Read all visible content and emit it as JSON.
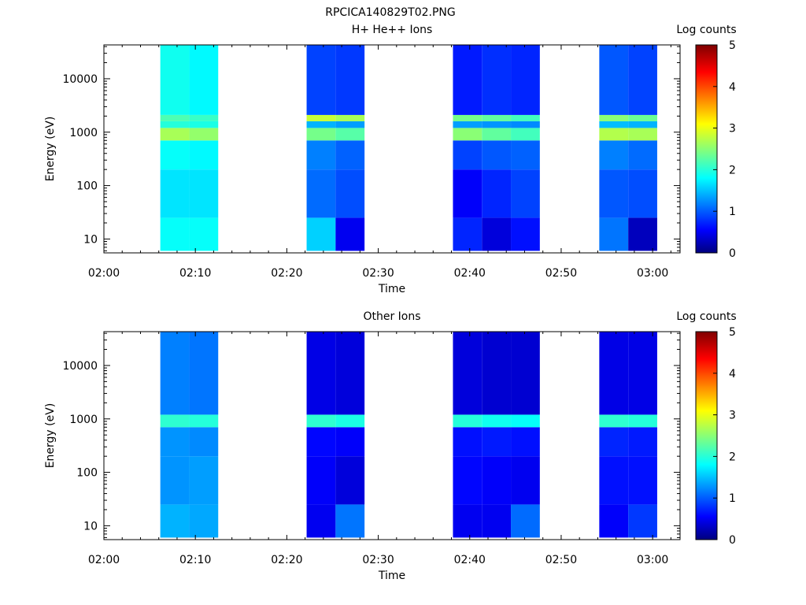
{
  "figure_title": "RPCICA140829T02.PNG",
  "chart_data": [
    {
      "type": "heatmap",
      "title": "H+ He++ Ions",
      "xlabel": "Time",
      "ylabel": "Energy (eV)",
      "colorbar_label": "Log counts",
      "colorbar_ticks": [
        "0",
        "1",
        "2",
        "3",
        "4",
        "5"
      ],
      "colorbar_range": [
        0,
        5
      ],
      "x_ticks": [
        "02:00",
        "02:10",
        "02:20",
        "02:30",
        "02:40",
        "02:50",
        "03:00"
      ],
      "y_ticks": [
        "10",
        "100",
        "1000",
        "10000"
      ],
      "xlim": [
        "02:00",
        "03:03"
      ],
      "ylim": [
        5.5,
        43000
      ],
      "y_scale": "log",
      "colormap": "jet",
      "columns": [
        {
          "t_start": "02:06:10",
          "t_end": "02:09:20",
          "bands": [
            {
              "e_min": 6,
              "e_max": 25,
              "v": 1.9
            },
            {
              "e_min": 25,
              "e_max": 200,
              "v": 1.75
            },
            {
              "e_min": 200,
              "e_max": 700,
              "v": 1.9
            },
            {
              "e_min": 700,
              "e_max": 1200,
              "v": 2.7
            },
            {
              "e_min": 1200,
              "e_max": 1600,
              "v": 2.05
            },
            {
              "e_min": 1600,
              "e_max": 2100,
              "v": 2.25
            },
            {
              "e_min": 2100,
              "e_max": 43000,
              "v": 1.95
            }
          ]
        },
        {
          "t_start": "02:09:20",
          "t_end": "02:12:30",
          "bands": [
            {
              "e_min": 6,
              "e_max": 25,
              "v": 1.9
            },
            {
              "e_min": 25,
              "e_max": 200,
              "v": 1.75
            },
            {
              "e_min": 200,
              "e_max": 700,
              "v": 1.85
            },
            {
              "e_min": 700,
              "e_max": 1200,
              "v": 2.6
            },
            {
              "e_min": 1200,
              "e_max": 1600,
              "v": 2.0
            },
            {
              "e_min": 1600,
              "e_max": 2100,
              "v": 2.15
            },
            {
              "e_min": 2100,
              "e_max": 43000,
              "v": 1.85
            }
          ]
        },
        {
          "t_start": "02:22:10",
          "t_end": "02:25:20",
          "bands": [
            {
              "e_min": 6,
              "e_max": 25,
              "v": 1.65
            },
            {
              "e_min": 25,
              "e_max": 200,
              "v": 1.15
            },
            {
              "e_min": 200,
              "e_max": 700,
              "v": 1.25
            },
            {
              "e_min": 700,
              "e_max": 1200,
              "v": 2.45
            },
            {
              "e_min": 1200,
              "e_max": 1600,
              "v": 1.5
            },
            {
              "e_min": 1600,
              "e_max": 2100,
              "v": 2.85
            },
            {
              "e_min": 2100,
              "e_max": 43000,
              "v": 0.95
            }
          ]
        },
        {
          "t_start": "02:25:20",
          "t_end": "02:28:30",
          "bands": [
            {
              "e_min": 6,
              "e_max": 25,
              "v": 0.55
            },
            {
              "e_min": 25,
              "e_max": 200,
              "v": 1.0
            },
            {
              "e_min": 200,
              "e_max": 700,
              "v": 1.1
            },
            {
              "e_min": 700,
              "e_max": 1200,
              "v": 2.3
            },
            {
              "e_min": 1200,
              "e_max": 1600,
              "v": 1.4
            },
            {
              "e_min": 1600,
              "e_max": 2100,
              "v": 2.7
            },
            {
              "e_min": 2100,
              "e_max": 43000,
              "v": 0.9
            }
          ]
        },
        {
          "t_start": "02:38:10",
          "t_end": "02:41:20",
          "bands": [
            {
              "e_min": 6,
              "e_max": 25,
              "v": 0.8
            },
            {
              "e_min": 25,
              "e_max": 200,
              "v": 0.6
            },
            {
              "e_min": 200,
              "e_max": 700,
              "v": 0.95
            },
            {
              "e_min": 700,
              "e_max": 1200,
              "v": 2.55
            },
            {
              "e_min": 1200,
              "e_max": 1600,
              "v": 1.4
            },
            {
              "e_min": 1600,
              "e_max": 2100,
              "v": 2.45
            },
            {
              "e_min": 2100,
              "e_max": 43000,
              "v": 0.75
            }
          ]
        },
        {
          "t_start": "02:41:20",
          "t_end": "02:44:30",
          "bands": [
            {
              "e_min": 6,
              "e_max": 25,
              "v": 0.45
            },
            {
              "e_min": 25,
              "e_max": 200,
              "v": 0.8
            },
            {
              "e_min": 200,
              "e_max": 700,
              "v": 1.05
            },
            {
              "e_min": 700,
              "e_max": 1200,
              "v": 2.35
            },
            {
              "e_min": 1200,
              "e_max": 1600,
              "v": 1.35
            },
            {
              "e_min": 1600,
              "e_max": 2100,
              "v": 2.35
            },
            {
              "e_min": 2100,
              "e_max": 43000,
              "v": 0.85
            }
          ]
        },
        {
          "t_start": "02:44:30",
          "t_end": "02:47:40",
          "bands": [
            {
              "e_min": 6,
              "e_max": 25,
              "v": 0.7
            },
            {
              "e_min": 25,
              "e_max": 200,
              "v": 0.95
            },
            {
              "e_min": 200,
              "e_max": 700,
              "v": 1.1
            },
            {
              "e_min": 700,
              "e_max": 1200,
              "v": 2.2
            },
            {
              "e_min": 1200,
              "e_max": 1600,
              "v": 1.3
            },
            {
              "e_min": 1600,
              "e_max": 2100,
              "v": 2.2
            },
            {
              "e_min": 2100,
              "e_max": 43000,
              "v": 0.8
            }
          ]
        },
        {
          "t_start": "02:54:10",
          "t_end": "02:57:20",
          "bands": [
            {
              "e_min": 6,
              "e_max": 25,
              "v": 1.2
            },
            {
              "e_min": 25,
              "e_max": 200,
              "v": 1.05
            },
            {
              "e_min": 200,
              "e_max": 700,
              "v": 1.25
            },
            {
              "e_min": 700,
              "e_max": 1200,
              "v": 2.75
            },
            {
              "e_min": 1200,
              "e_max": 1600,
              "v": 1.55
            },
            {
              "e_min": 1600,
              "e_max": 2100,
              "v": 2.55
            },
            {
              "e_min": 2100,
              "e_max": 43000,
              "v": 1.05
            }
          ]
        },
        {
          "t_start": "02:57:20",
          "t_end": "03:00:30",
          "bands": [
            {
              "e_min": 6,
              "e_max": 25,
              "v": 0.3
            },
            {
              "e_min": 25,
              "e_max": 200,
              "v": 1.0
            },
            {
              "e_min": 200,
              "e_max": 700,
              "v": 1.15
            },
            {
              "e_min": 700,
              "e_max": 1200,
              "v": 2.7
            },
            {
              "e_min": 1200,
              "e_max": 1600,
              "v": 1.5
            },
            {
              "e_min": 1600,
              "e_max": 2100,
              "v": 2.4
            },
            {
              "e_min": 2100,
              "e_max": 43000,
              "v": 0.95
            }
          ]
        }
      ]
    },
    {
      "type": "heatmap",
      "title": "Other Ions",
      "xlabel": "Time",
      "ylabel": "Energy (eV)",
      "colorbar_label": "Log counts",
      "colorbar_ticks": [
        "0",
        "1",
        "2",
        "3",
        "4",
        "5"
      ],
      "colorbar_range": [
        0,
        5
      ],
      "x_ticks": [
        "02:00",
        "02:10",
        "02:20",
        "02:30",
        "02:40",
        "02:50",
        "03:00"
      ],
      "y_ticks": [
        "10",
        "100",
        "1000",
        "10000"
      ],
      "xlim": [
        "02:00",
        "03:03"
      ],
      "ylim": [
        5.5,
        43000
      ],
      "y_scale": "log",
      "colormap": "jet",
      "columns": [
        {
          "t_start": "02:06:10",
          "t_end": "02:09:20",
          "bands": [
            {
              "e_min": 6,
              "e_max": 25,
              "v": 1.5
            },
            {
              "e_min": 25,
              "e_max": 200,
              "v": 1.35
            },
            {
              "e_min": 200,
              "e_max": 700,
              "v": 1.35
            },
            {
              "e_min": 700,
              "e_max": 1200,
              "v": 2.1
            },
            {
              "e_min": 1200,
              "e_max": 43000,
              "v": 1.25
            }
          ]
        },
        {
          "t_start": "02:09:20",
          "t_end": "02:12:30",
          "bands": [
            {
              "e_min": 6,
              "e_max": 25,
              "v": 1.45
            },
            {
              "e_min": 25,
              "e_max": 200,
              "v": 1.4
            },
            {
              "e_min": 200,
              "e_max": 700,
              "v": 1.3
            },
            {
              "e_min": 700,
              "e_max": 1200,
              "v": 2.05
            },
            {
              "e_min": 1200,
              "e_max": 43000,
              "v": 1.2
            }
          ]
        },
        {
          "t_start": "02:22:10",
          "t_end": "02:25:20",
          "bands": [
            {
              "e_min": 6,
              "e_max": 25,
              "v": 0.55
            },
            {
              "e_min": 25,
              "e_max": 200,
              "v": 0.6
            },
            {
              "e_min": 200,
              "e_max": 700,
              "v": 0.65
            },
            {
              "e_min": 700,
              "e_max": 1200,
              "v": 2.1
            },
            {
              "e_min": 1200,
              "e_max": 43000,
              "v": 0.5
            }
          ]
        },
        {
          "t_start": "02:25:20",
          "t_end": "02:28:30",
          "bands": [
            {
              "e_min": 6,
              "e_max": 25,
              "v": 1.2
            },
            {
              "e_min": 25,
              "e_max": 200,
              "v": 0.45
            },
            {
              "e_min": 200,
              "e_max": 700,
              "v": 0.6
            },
            {
              "e_min": 700,
              "e_max": 1200,
              "v": 2.0
            },
            {
              "e_min": 1200,
              "e_max": 43000,
              "v": 0.45
            }
          ]
        },
        {
          "t_start": "02:38:10",
          "t_end": "02:41:20",
          "bands": [
            {
              "e_min": 6,
              "e_max": 25,
              "v": 0.55
            },
            {
              "e_min": 25,
              "e_max": 200,
              "v": 0.65
            },
            {
              "e_min": 200,
              "e_max": 700,
              "v": 0.7
            },
            {
              "e_min": 700,
              "e_max": 1200,
              "v": 2.05
            },
            {
              "e_min": 1200,
              "e_max": 43000,
              "v": 0.45
            }
          ]
        },
        {
          "t_start": "02:41:20",
          "t_end": "02:44:30",
          "bands": [
            {
              "e_min": 6,
              "e_max": 25,
              "v": 0.55
            },
            {
              "e_min": 25,
              "e_max": 200,
              "v": 0.6
            },
            {
              "e_min": 200,
              "e_max": 700,
              "v": 0.75
            },
            {
              "e_min": 700,
              "e_max": 1200,
              "v": 1.95
            },
            {
              "e_min": 1200,
              "e_max": 43000,
              "v": 0.4
            }
          ]
        },
        {
          "t_start": "02:44:30",
          "t_end": "02:47:40",
          "bands": [
            {
              "e_min": 6,
              "e_max": 25,
              "v": 1.15
            },
            {
              "e_min": 25,
              "e_max": 200,
              "v": 0.55
            },
            {
              "e_min": 200,
              "e_max": 700,
              "v": 0.7
            },
            {
              "e_min": 700,
              "e_max": 1200,
              "v": 1.9
            },
            {
              "e_min": 1200,
              "e_max": 43000,
              "v": 0.4
            }
          ]
        },
        {
          "t_start": "02:54:10",
          "t_end": "02:57:20",
          "bands": [
            {
              "e_min": 6,
              "e_max": 25,
              "v": 0.6
            },
            {
              "e_min": 25,
              "e_max": 200,
              "v": 0.7
            },
            {
              "e_min": 200,
              "e_max": 700,
              "v": 0.8
            },
            {
              "e_min": 700,
              "e_max": 1200,
              "v": 2.1
            },
            {
              "e_min": 1200,
              "e_max": 43000,
              "v": 0.5
            }
          ]
        },
        {
          "t_start": "02:57:20",
          "t_end": "03:00:30",
          "bands": [
            {
              "e_min": 6,
              "e_max": 25,
              "v": 0.9
            },
            {
              "e_min": 25,
              "e_max": 200,
              "v": 0.7
            },
            {
              "e_min": 200,
              "e_max": 700,
              "v": 0.75
            },
            {
              "e_min": 700,
              "e_max": 1200,
              "v": 2.05
            },
            {
              "e_min": 1200,
              "e_max": 43000,
              "v": 0.5
            }
          ]
        }
      ]
    }
  ]
}
